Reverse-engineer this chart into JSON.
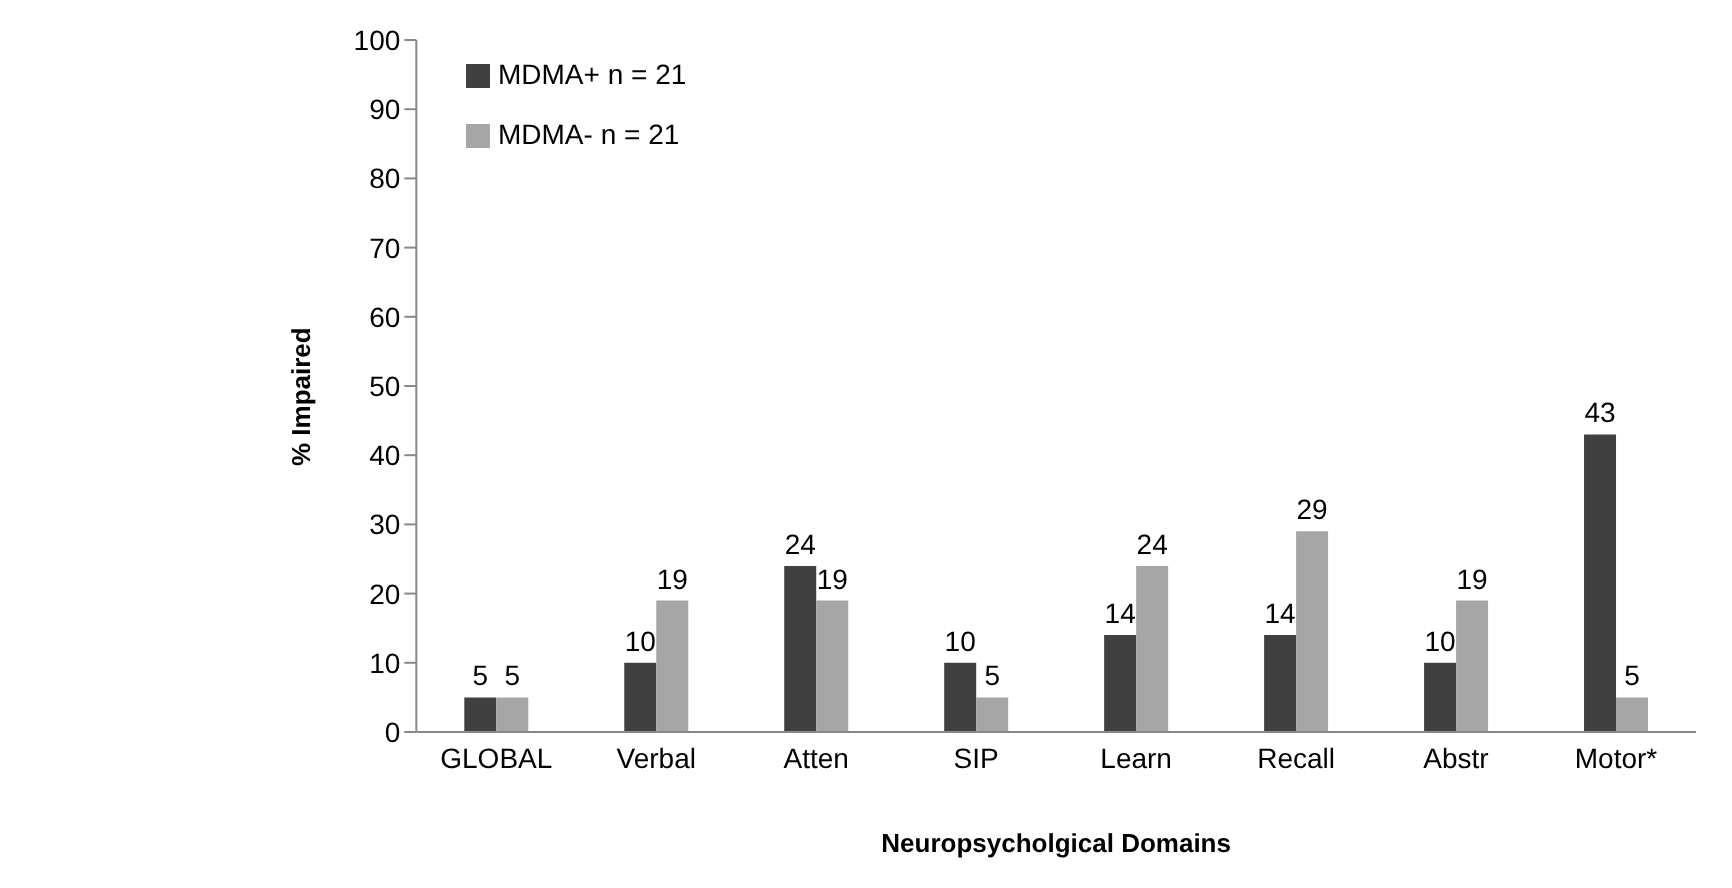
{
  "chart_data": {
    "type": "bar",
    "xlabel": "Neuropsycholgical Domains",
    "ylabel": "% Impaired",
    "categories": [
      "GLOBAL",
      "Verbal",
      "Atten",
      "SIP",
      "Learn",
      "Recall",
      "Abstr",
      "Motor*"
    ],
    "series": [
      {
        "name": "MDMA+  n = 21",
        "color": "#404040",
        "values": [
          5,
          10,
          24,
          10,
          14,
          14,
          10,
          43
        ]
      },
      {
        "name": "MDMA- n = 21",
        "color": "#a6a6a6",
        "values": [
          5,
          19,
          19,
          5,
          24,
          29,
          19,
          5
        ]
      }
    ],
    "ylim": [
      0,
      100
    ],
    "yticks": [
      0,
      10,
      20,
      30,
      40,
      50,
      60,
      70,
      80,
      90,
      100
    ],
    "data_labels": true,
    "legend": "top left",
    "grid": false
  }
}
